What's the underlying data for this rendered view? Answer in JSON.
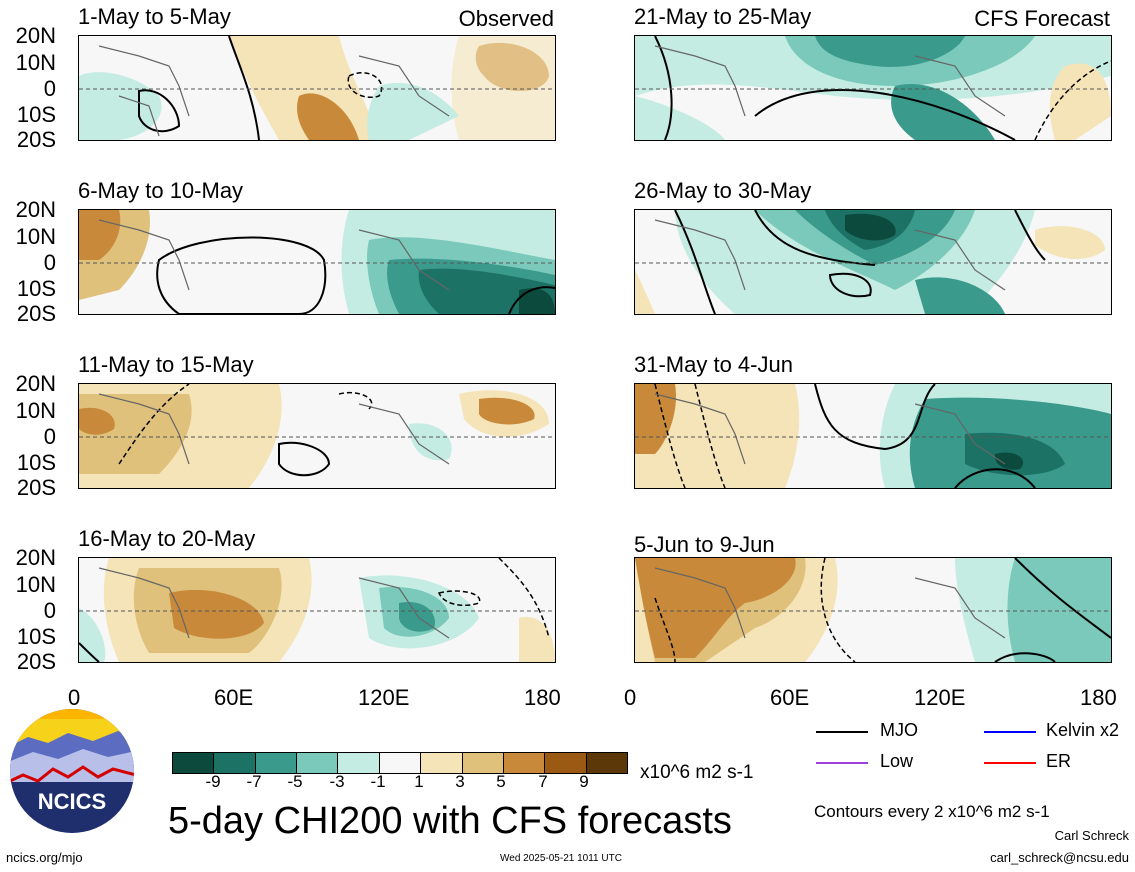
{
  "header": {
    "left_tag": "Observed",
    "right_tag": "CFS Forecast"
  },
  "panels": [
    {
      "title": "1-May to 5-May"
    },
    {
      "title": "21-May to 25-May"
    },
    {
      "title": "6-May to 10-May"
    },
    {
      "title": "26-May to 30-May"
    },
    {
      "title": "11-May to 15-May"
    },
    {
      "title": "31-May to 4-Jun"
    },
    {
      "title": "16-May to 20-May"
    },
    {
      "title": "5-Jun to 9-Jun"
    }
  ],
  "lat_labels": [
    "20N",
    "10N",
    "0",
    "10S",
    "20S"
  ],
  "lon_labels": [
    "0",
    "60E",
    "120E",
    "180"
  ],
  "colorbar": {
    "labels": [
      "-9",
      "-7",
      "-5",
      "-3",
      "-1",
      "1",
      "3",
      "5",
      "7",
      "9"
    ],
    "units": "x10^6 m2 s-1",
    "colors": [
      "#0b4a3c",
      "#1d7266",
      "#3a9a8c",
      "#7ac9bb",
      "#c5ece2",
      "#f7f7f7",
      "#f4e4b8",
      "#e0c17c",
      "#c88a3a",
      "#9a5a14",
      "#5c3808"
    ]
  },
  "legend": {
    "items": [
      {
        "label": "MJO",
        "color": "#000000"
      },
      {
        "label": "Kelvin x2",
        "color": "#0000ff"
      },
      {
        "label": "Low",
        "color": "#a040e0"
      },
      {
        "label": "ER",
        "color": "#ff0000"
      }
    ],
    "contours_note": "Contours every 2 x10^6 m2 s-1"
  },
  "main_title": "5-day CHI200 with CFS forecasts",
  "logo_text": "NCICS",
  "footer": {
    "url": "ncics.org/mjo",
    "timestamp": "Wed 2025-05-21 1011 UTC",
    "author": "Carl Schreck",
    "email": "carl_schreck@ncsu.edu"
  }
}
